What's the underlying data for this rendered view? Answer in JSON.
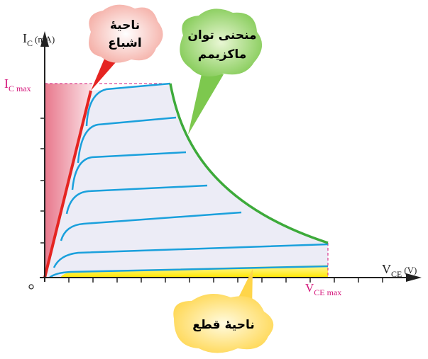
{
  "y_axis_label": {
    "symbol": "I",
    "subscript": "C",
    "unit": "(mA)"
  },
  "x_axis_label": {
    "symbol": "V",
    "subscript": "CE",
    "unit": "(V)"
  },
  "ic_max_label": {
    "symbol": "I",
    "subscript": "C max"
  },
  "vce_max_label": {
    "symbol": "V",
    "subscript": "CE max"
  },
  "regions": [
    {
      "lines": [
        "ناحیهٔ",
        "اشباع"
      ]
    },
    {
      "lines": [
        "منحنی توان",
        "ماکزیمم"
      ]
    },
    {
      "lines": [
        "ناحیهٔ قطع"
      ]
    }
  ]
}
